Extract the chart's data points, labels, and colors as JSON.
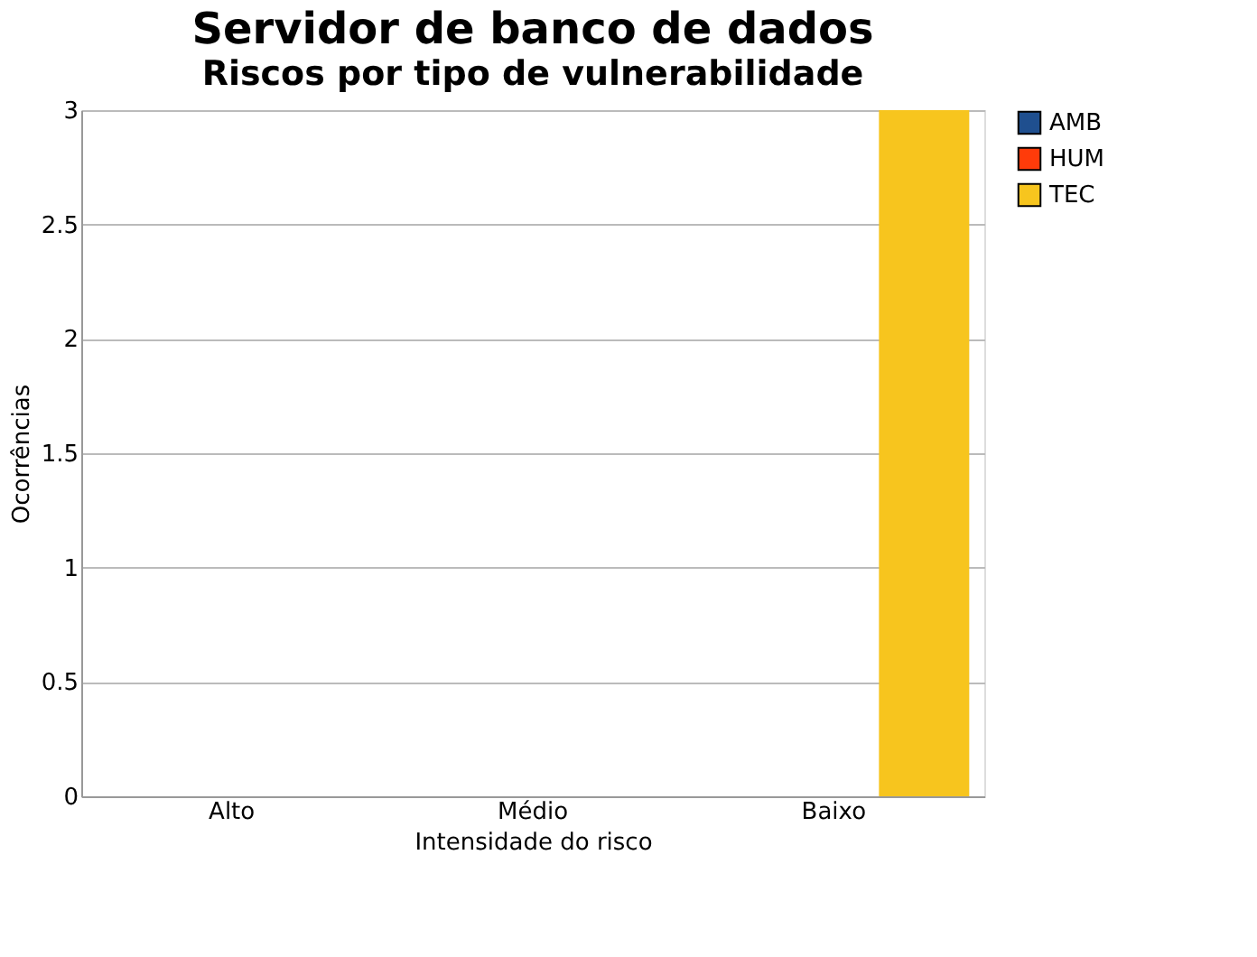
{
  "chart_data": {
    "type": "bar",
    "title": "Servidor de banco de dados",
    "subtitle": "Riscos por tipo de vulnerabilidade",
    "xlabel": "Intensidade do risco",
    "ylabel": "Ocorrências",
    "categories": [
      "Alto",
      "Médio",
      "Baixo"
    ],
    "series": [
      {
        "name": "AMB",
        "color": "#1f4f8f",
        "values": [
          0,
          0,
          0
        ]
      },
      {
        "name": "HUM",
        "color": "#ff3b0a",
        "values": [
          0,
          0,
          0
        ]
      },
      {
        "name": "TEC",
        "color": "#f7c51e",
        "values": [
          0,
          0,
          3
        ]
      }
    ],
    "ylim": [
      0,
      3
    ],
    "yticks": [
      0,
      0.5,
      1,
      1.5,
      2,
      2.5,
      3
    ],
    "grid": "y",
    "legend": "right"
  }
}
